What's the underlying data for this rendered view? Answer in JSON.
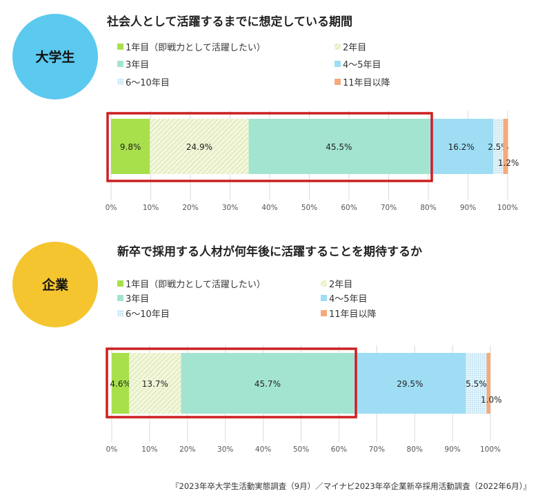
{
  "colors": {
    "seg1": "#A8E04C",
    "seg2": "#EEF3D2",
    "seg3": "#A3E4D0",
    "seg4": "#9EDDF3",
    "seg5": "#D6ECF6",
    "seg6": "#F4AA7A",
    "highlight": "#CC1F1F",
    "badge_student": "#5CC9EF",
    "badge_company": "#F5C530"
  },
  "legend_labels": [
    "1年目（即戦力として活躍したい）",
    "2年目",
    "3年目",
    "4〜5年目",
    "6〜10年目",
    "11年目以降"
  ],
  "footer": "『2023年卒大学生活動実態調査（9月）／マイナビ2023年卒企業新卒採用活動調査（2022年6月）』",
  "chart_data": [
    {
      "type": "bar",
      "orientation": "horizontal-stacked",
      "badge": "大学生",
      "title": "社会人として活躍するまでに想定している期間",
      "series": [
        {
          "name": "1年目（即戦力として活躍したい）",
          "value": 9.8,
          "label": "9.8%"
        },
        {
          "name": "2年目",
          "value": 24.9,
          "label": "24.9%"
        },
        {
          "name": "3年目",
          "value": 45.5,
          "label": "45.5%"
        },
        {
          "name": "4〜5年目",
          "value": 16.2,
          "label": "16.2%"
        },
        {
          "name": "6〜10年目",
          "value": 2.5,
          "label": "2.5%"
        },
        {
          "name": "11年目以降",
          "value": 1.2,
          "label": "1.2%"
        }
      ],
      "highlighted_segments": 3,
      "xlim": [
        0,
        100
      ],
      "xticks": [
        "0%",
        "10%",
        "20%",
        "30%",
        "40%",
        "50%",
        "60%",
        "70%",
        "80%",
        "90%",
        "100%"
      ],
      "grid": true,
      "legend_position": "top"
    },
    {
      "type": "bar",
      "orientation": "horizontal-stacked",
      "badge": "企業",
      "title": "新卒で採用する人材が何年後に活躍することを期待するか",
      "series": [
        {
          "name": "1年目（即戦力として活躍したい）",
          "value": 4.6,
          "label": "4.6%"
        },
        {
          "name": "2年目",
          "value": 13.7,
          "label": "13.7%"
        },
        {
          "name": "3年目",
          "value": 45.7,
          "label": "45.7%"
        },
        {
          "name": "4〜5年目",
          "value": 29.5,
          "label": "29.5%"
        },
        {
          "name": "6〜10年目",
          "value": 5.5,
          "label": "5.5%"
        },
        {
          "name": "11年目以降",
          "value": 1.0,
          "label": "1.0%"
        }
      ],
      "highlighted_segments": 3,
      "xlim": [
        0,
        100
      ],
      "xticks": [
        "0%",
        "10%",
        "20%",
        "30%",
        "40%",
        "50%",
        "60%",
        "70%",
        "80%",
        "90%",
        "100%"
      ],
      "grid": true,
      "legend_position": "top"
    }
  ]
}
